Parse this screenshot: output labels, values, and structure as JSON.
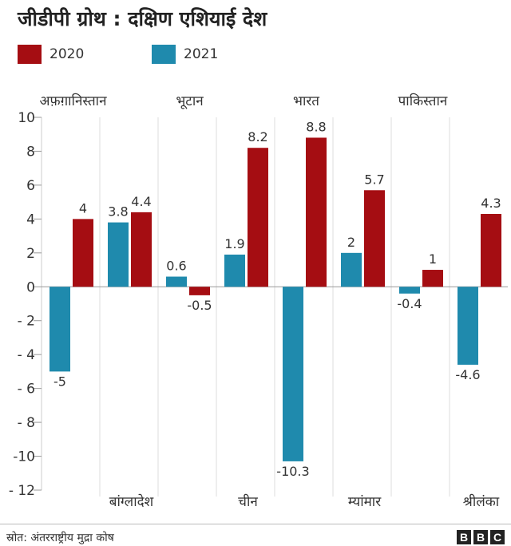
{
  "title": "जीडीपी ग्रोथ : दक्षिण एशियाई देश",
  "source": "स्रोत: अंतरराष्ट्रीय मुद्रा कोष",
  "logo": [
    "B",
    "B",
    "C"
  ],
  "colors": {
    "2020": "#a50d12",
    "2021": "#1f8aad"
  },
  "chart_data": {
    "type": "bar",
    "categories": [
      "अफ़ग़ानिस्तान",
      "बांग्लादेश",
      "भूटान",
      "चीन",
      "भारत",
      "म्यांमार",
      "पाकिस्तान",
      "श्रीलंका"
    ],
    "series": [
      {
        "name": "2021",
        "values": [
          -5,
          3.8,
          0.6,
          1.9,
          -10.3,
          2,
          -0.4,
          -4.6
        ]
      },
      {
        "name": "2020",
        "values": [
          4,
          4.4,
          -0.5,
          8.2,
          8.8,
          5.7,
          1,
          4.3
        ]
      }
    ],
    "value_labels": {
      "2021": [
        "-5",
        "3.8",
        "0.6",
        "1.9",
        "-10.3",
        "2",
        "-0.4",
        "-4.6"
      ],
      "2020": [
        "4",
        "4.4",
        "-0.5",
        "8.2",
        "8.8",
        "5.7",
        "1",
        "4.3"
      ]
    },
    "yticks": [
      10,
      8,
      6,
      4,
      2,
      0,
      -2,
      -4,
      -6,
      -8,
      -10,
      -12
    ],
    "ytick_labels": [
      "10",
      "8",
      "6",
      "4",
      "2",
      "0",
      "- 2",
      "- 4",
      "- 6",
      "- 8",
      "-10",
      "- 12"
    ],
    "ylim": [
      -12,
      10
    ],
    "category_label_position": [
      "top",
      "bottom",
      "top",
      "bottom",
      "top",
      "bottom",
      "top",
      "bottom"
    ],
    "grid": "vertical-dividers",
    "legend": "top-left",
    "xlabel": "",
    "ylabel": ""
  }
}
